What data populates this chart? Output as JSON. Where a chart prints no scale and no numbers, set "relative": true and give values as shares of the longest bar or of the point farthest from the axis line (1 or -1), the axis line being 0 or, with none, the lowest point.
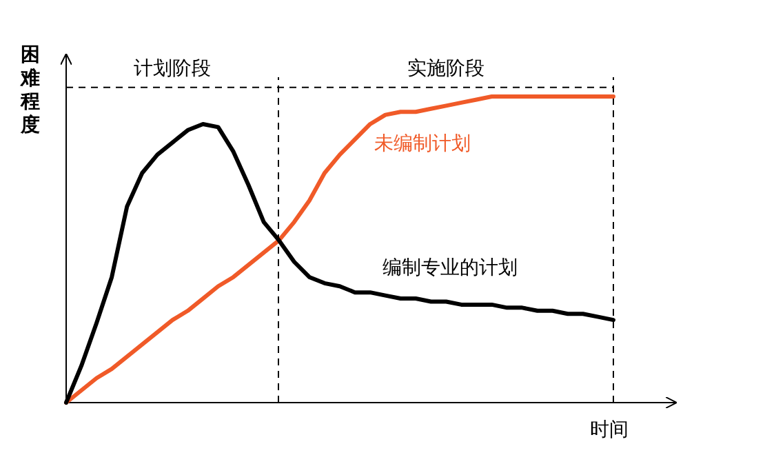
{
  "chart_data": {
    "type": "line",
    "relative": true,
    "ylabel": "困难程度",
    "xlabel": "时间",
    "categories": [
      null,
      null,
      null,
      null,
      null,
      null,
      null,
      null,
      null,
      null,
      null,
      null,
      null,
      null,
      null,
      null,
      null,
      null,
      null,
      null,
      null,
      null,
      null,
      null,
      null,
      null,
      null,
      null,
      null,
      null,
      null,
      null,
      null,
      null,
      null,
      null,
      null
    ],
    "series": [
      {
        "name": "未编制计划",
        "color": "#f05a28",
        "values": [
          0,
          0.04,
          0.08,
          0.11,
          0.15,
          0.19,
          0.23,
          0.27,
          0.3,
          0.34,
          0.38,
          0.41,
          0.45,
          0.49,
          0.53,
          0.59,
          0.66,
          0.75,
          0.81,
          0.86,
          0.91,
          0.94,
          0.95,
          0.95,
          0.96,
          0.97,
          0.98,
          0.99,
          1,
          1,
          1,
          1,
          1,
          1,
          1,
          1,
          1
        ]
      },
      {
        "name": "编制专业的计划",
        "color": "#000000",
        "values": [
          0,
          0.12,
          0.26,
          0.41,
          0.64,
          0.75,
          0.81,
          0.85,
          0.89,
          0.91,
          0.9,
          0.82,
          0.71,
          0.59,
          0.53,
          0.46,
          0.41,
          0.39,
          0.38,
          0.36,
          0.36,
          0.35,
          0.34,
          0.34,
          0.33,
          0.33,
          0.32,
          0.32,
          0.32,
          0.31,
          0.31,
          0.3,
          0.3,
          0.29,
          0.29,
          0.28,
          0.27
        ]
      }
    ],
    "ref_lines": [
      {
        "axis": "y",
        "value": 1.03,
        "color": "#000000",
        "line_style": "dashed"
      }
    ],
    "annotations": [
      "计划阶段",
      "实施阶段"
    ],
    "grid": false,
    "marker": "none",
    "line_style": "solid"
  }
}
